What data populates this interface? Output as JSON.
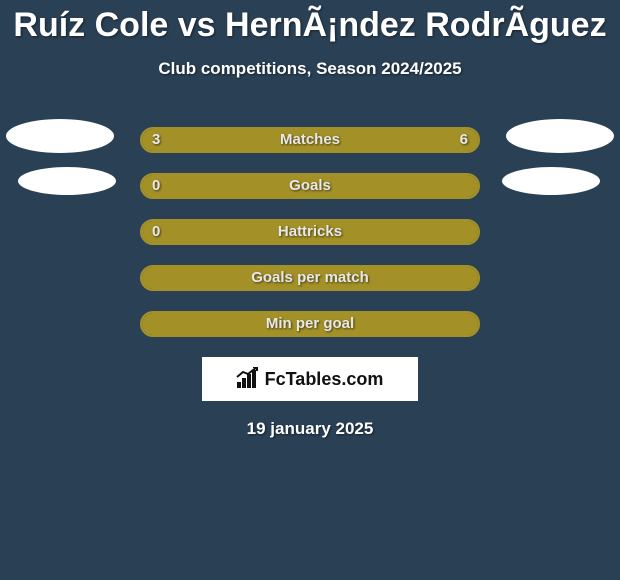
{
  "title": "Ruíz Cole vs HernÃ¡ndez RodrÃ­guez",
  "subtitle": "Club competitions, Season 2024/2025",
  "date": "19 january 2025",
  "brand": "FcTables.com",
  "colors": {
    "background": "#2a4055",
    "bar_border": "#a39128",
    "bar_fill": "#a39128",
    "text": "#ffffff",
    "brand_bg": "#ffffff",
    "brand_text": "#111111"
  },
  "stats": [
    {
      "label": "Matches",
      "left_value": "3",
      "right_value": "6",
      "left_pct": 31,
      "right_pct": 69,
      "show_left_avatar": true,
      "show_right_avatar": true,
      "avatar_size": "big"
    },
    {
      "label": "Goals",
      "left_value": "0",
      "right_value": "",
      "left_pct": 0,
      "right_pct": 100,
      "show_left_avatar": true,
      "show_right_avatar": true,
      "avatar_size": "small"
    },
    {
      "label": "Hattricks",
      "left_value": "0",
      "right_value": "",
      "left_pct": 0,
      "right_pct": 100,
      "show_left_avatar": false,
      "show_right_avatar": false
    },
    {
      "label": "Goals per match",
      "left_value": "",
      "right_value": "",
      "left_pct": 0,
      "right_pct": 100,
      "show_left_avatar": false,
      "show_right_avatar": false
    },
    {
      "label": "Min per goal",
      "left_value": "",
      "right_value": "",
      "left_pct": 100,
      "right_pct": 0,
      "show_left_avatar": false,
      "show_right_avatar": false
    }
  ]
}
